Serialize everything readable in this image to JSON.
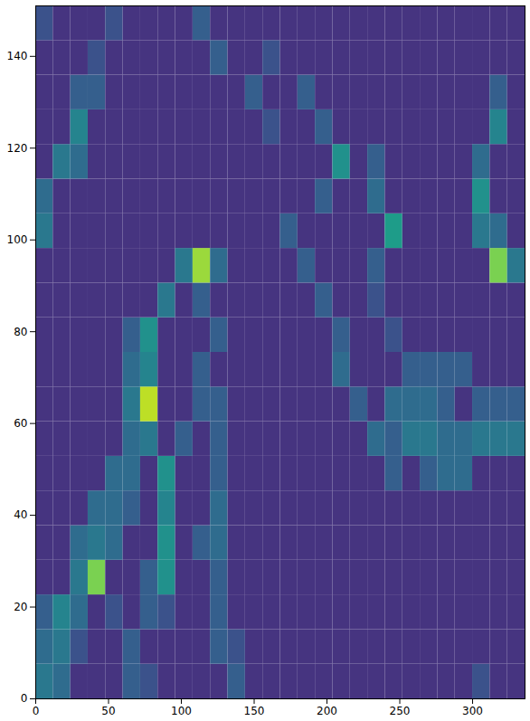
{
  "chart_data": {
    "type": "heatmap",
    "color": "viridis",
    "xlim": [
      0,
      336
    ],
    "ylim": [
      0,
      151
    ],
    "xticks": [
      0,
      50,
      100,
      150,
      200,
      250,
      300
    ],
    "yticks": [
      0,
      20,
      40,
      60,
      80,
      100,
      120,
      140
    ],
    "color_range": [
      0,
      1
    ],
    "cells": [
      [
        0.4,
        0.35,
        0.15,
        0.15,
        0.15,
        0.3,
        0.25,
        0.15,
        0.15,
        0.15,
        0.15,
        0.3,
        0.15,
        0.15,
        0.15,
        0.15,
        0.15,
        0.15,
        0.15,
        0.15,
        0.15,
        0.15,
        0.15,
        0.15,
        0.15,
        0.25,
        0.15,
        0.15
      ],
      [
        0.35,
        0.4,
        0.25,
        0.15,
        0.15,
        0.3,
        0.15,
        0.15,
        0.15,
        0.15,
        0.3,
        0.25,
        0.15,
        0.15,
        0.15,
        0.15,
        0.15,
        0.15,
        0.15,
        0.15,
        0.15,
        0.15,
        0.15,
        0.15,
        0.15,
        0.15,
        0.15,
        0.15
      ],
      [
        0.3,
        0.45,
        0.35,
        0.15,
        0.25,
        0.15,
        0.3,
        0.25,
        0.15,
        0.15,
        0.3,
        0.15,
        0.15,
        0.15,
        0.15,
        0.15,
        0.15,
        0.15,
        0.15,
        0.15,
        0.15,
        0.15,
        0.15,
        0.15,
        0.15,
        0.15,
        0.15,
        0.15
      ],
      [
        0.15,
        0.15,
        0.4,
        0.8,
        0.15,
        0.15,
        0.3,
        0.5,
        0.15,
        0.15,
        0.3,
        0.15,
        0.15,
        0.15,
        0.15,
        0.15,
        0.15,
        0.15,
        0.15,
        0.15,
        0.15,
        0.15,
        0.15,
        0.15,
        0.15,
        0.15,
        0.15,
        0.15
      ],
      [
        0.15,
        0.15,
        0.35,
        0.4,
        0.35,
        0.15,
        0.15,
        0.5,
        0.15,
        0.3,
        0.35,
        0.15,
        0.15,
        0.15,
        0.15,
        0.15,
        0.15,
        0.15,
        0.15,
        0.15,
        0.15,
        0.15,
        0.15,
        0.15,
        0.15,
        0.15,
        0.15,
        0.15
      ],
      [
        0.15,
        0.15,
        0.15,
        0.35,
        0.35,
        0.3,
        0.15,
        0.45,
        0.15,
        0.15,
        0.35,
        0.15,
        0.15,
        0.15,
        0.15,
        0.15,
        0.15,
        0.15,
        0.15,
        0.15,
        0.15,
        0.15,
        0.15,
        0.15,
        0.15,
        0.15,
        0.15,
        0.15
      ],
      [
        0.15,
        0.15,
        0.15,
        0.15,
        0.35,
        0.35,
        0.15,
        0.5,
        0.15,
        0.15,
        0.3,
        0.15,
        0.15,
        0.15,
        0.15,
        0.15,
        0.15,
        0.15,
        0.15,
        0.15,
        0.3,
        0.15,
        0.3,
        0.35,
        0.35,
        0.15,
        0.15,
        0.15
      ],
      [
        0.15,
        0.15,
        0.15,
        0.15,
        0.15,
        0.35,
        0.4,
        0.15,
        0.3,
        0.15,
        0.3,
        0.15,
        0.15,
        0.15,
        0.15,
        0.15,
        0.15,
        0.15,
        0.15,
        0.35,
        0.3,
        0.4,
        0.4,
        0.35,
        0.35,
        0.4,
        0.4,
        0.4
      ],
      [
        0.15,
        0.15,
        0.15,
        0.15,
        0.15,
        0.4,
        0.9,
        0.15,
        0.15,
        0.3,
        0.3,
        0.15,
        0.15,
        0.15,
        0.15,
        0.15,
        0.15,
        0.15,
        0.3,
        0.15,
        0.35,
        0.35,
        0.35,
        0.3,
        0.15,
        0.3,
        0.3,
        0.3
      ],
      [
        0.15,
        0.15,
        0.15,
        0.15,
        0.15,
        0.35,
        0.45,
        0.15,
        0.15,
        0.3,
        0.15,
        0.15,
        0.15,
        0.15,
        0.15,
        0.15,
        0.15,
        0.35,
        0.15,
        0.15,
        0.15,
        0.3,
        0.3,
        0.3,
        0.3,
        0.15,
        0.15,
        0.15
      ],
      [
        0.15,
        0.15,
        0.15,
        0.15,
        0.15,
        0.3,
        0.5,
        0.15,
        0.15,
        0.15,
        0.3,
        0.15,
        0.15,
        0.15,
        0.15,
        0.15,
        0.15,
        0.3,
        0.15,
        0.15,
        0.25,
        0.15,
        0.15,
        0.15,
        0.15,
        0.15,
        0.15,
        0.15
      ],
      [
        0.15,
        0.15,
        0.15,
        0.15,
        0.15,
        0.15,
        0.15,
        0.4,
        0.15,
        0.3,
        0.15,
        0.15,
        0.15,
        0.15,
        0.15,
        0.15,
        0.3,
        0.15,
        0.15,
        0.25,
        0.15,
        0.15,
        0.15,
        0.15,
        0.15,
        0.15,
        0.15,
        0.15
      ],
      [
        0.15,
        0.15,
        0.15,
        0.15,
        0.15,
        0.15,
        0.15,
        0.15,
        0.4,
        0.85,
        0.35,
        0.15,
        0.15,
        0.15,
        0.15,
        0.3,
        0.15,
        0.15,
        0.15,
        0.3,
        0.15,
        0.15,
        0.15,
        0.15,
        0.15,
        0.15,
        0.8,
        0.4
      ],
      [
        0.4,
        0.15,
        0.15,
        0.15,
        0.15,
        0.15,
        0.15,
        0.15,
        0.15,
        0.15,
        0.15,
        0.15,
        0.15,
        0.15,
        0.3,
        0.15,
        0.15,
        0.15,
        0.15,
        0.15,
        0.55,
        0.15,
        0.15,
        0.15,
        0.15,
        0.4,
        0.35,
        0.15
      ],
      [
        0.35,
        0.15,
        0.15,
        0.15,
        0.15,
        0.15,
        0.15,
        0.15,
        0.15,
        0.15,
        0.15,
        0.15,
        0.15,
        0.15,
        0.15,
        0.15,
        0.3,
        0.15,
        0.15,
        0.35,
        0.15,
        0.15,
        0.15,
        0.15,
        0.15,
        0.5,
        0.15,
        0.15
      ],
      [
        0.15,
        0.4,
        0.35,
        0.15,
        0.15,
        0.15,
        0.15,
        0.15,
        0.15,
        0.15,
        0.15,
        0.15,
        0.15,
        0.15,
        0.15,
        0.15,
        0.15,
        0.5,
        0.15,
        0.3,
        0.15,
        0.15,
        0.15,
        0.15,
        0.15,
        0.35,
        0.15,
        0.15
      ],
      [
        0.15,
        0.15,
        0.45,
        0.15,
        0.15,
        0.15,
        0.15,
        0.15,
        0.15,
        0.15,
        0.15,
        0.15,
        0.15,
        0.25,
        0.15,
        0.15,
        0.3,
        0.15,
        0.15,
        0.15,
        0.15,
        0.15,
        0.15,
        0.15,
        0.15,
        0.15,
        0.45,
        0.15
      ],
      [
        0.15,
        0.15,
        0.3,
        0.3,
        0.15,
        0.15,
        0.15,
        0.15,
        0.15,
        0.15,
        0.15,
        0.15,
        0.3,
        0.15,
        0.15,
        0.3,
        0.15,
        0.15,
        0.15,
        0.15,
        0.15,
        0.15,
        0.15,
        0.15,
        0.15,
        0.15,
        0.3,
        0.15
      ],
      [
        0.15,
        0.15,
        0.15,
        0.25,
        0.15,
        0.15,
        0.15,
        0.15,
        0.15,
        0.15,
        0.3,
        0.15,
        0.15,
        0.25,
        0.15,
        0.15,
        0.15,
        0.15,
        0.15,
        0.15,
        0.15,
        0.15,
        0.15,
        0.15,
        0.15,
        0.15,
        0.15,
        0.15
      ],
      [
        0.25,
        0.15,
        0.15,
        0.15,
        0.25,
        0.15,
        0.15,
        0.15,
        0.15,
        0.3,
        0.15,
        0.15,
        0.15,
        0.15,
        0.15,
        0.15,
        0.15,
        0.15,
        0.15,
        0.15,
        0.15,
        0.15,
        0.15,
        0.15,
        0.15,
        0.15,
        0.15,
        0.15
      ]
    ]
  }
}
